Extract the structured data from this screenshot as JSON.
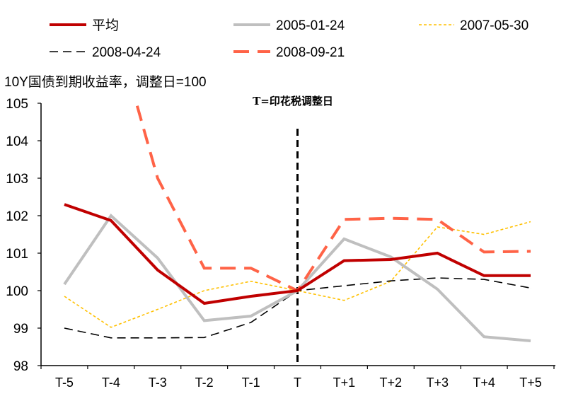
{
  "chart_data": {
    "type": "line",
    "ylabel": "10Y国债到期收益率，调整日=100",
    "annotation": "T=印花税调整日",
    "categories": [
      "T-5",
      "T-4",
      "T-3",
      "T-2",
      "T-1",
      "T",
      "T+1",
      "T+2",
      "T+3",
      "T+4",
      "T+5"
    ],
    "ylim": [
      98,
      105
    ],
    "yticks": [
      98,
      99,
      100,
      101,
      102,
      103,
      104,
      105
    ],
    "grid": false,
    "legend": "top",
    "vline_at": "T",
    "series": [
      {
        "name": "平均",
        "color": "#C00000",
        "style": "solid-thick",
        "values": [
          102.3,
          101.87,
          100.55,
          99.66,
          99.85,
          100,
          100.8,
          100.83,
          101.0,
          100.4,
          100.4
        ]
      },
      {
        "name": "2005-01-24",
        "color": "#BFBFBF",
        "style": "solid",
        "values": [
          100.17,
          102.0,
          100.87,
          99.2,
          99.32,
          100,
          101.38,
          100.9,
          100.04,
          98.77,
          98.66
        ]
      },
      {
        "name": "2007-05-30",
        "color": "#FFC000",
        "style": "dotted",
        "values": [
          99.85,
          99.02,
          99.5,
          100.0,
          100.25,
          100,
          99.74,
          100.25,
          101.7,
          101.5,
          101.84
        ]
      },
      {
        "name": "2008-04-24",
        "color": "#000000",
        "style": "dashed",
        "values": [
          99.0,
          98.74,
          98.74,
          98.75,
          99.15,
          100,
          100.13,
          100.26,
          100.34,
          100.3,
          100.07
        ]
      },
      {
        "name": "2008-09-21",
        "color": "#FF6347",
        "style": "long-dash",
        "values": [
          null,
          107.4,
          103.0,
          100.6,
          100.6,
          100,
          101.9,
          101.93,
          101.9,
          101.03,
          101.05
        ]
      }
    ]
  }
}
